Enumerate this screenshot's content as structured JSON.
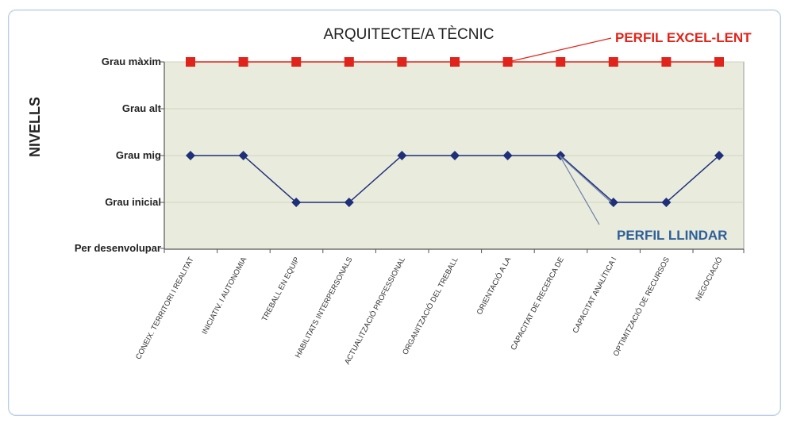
{
  "chart_data": {
    "type": "line",
    "title": "ARQUITECTE/A  TÈCNIC",
    "ylabel": "NIVELLS",
    "xlabel": "",
    "y_levels": [
      "Per desenvolupar",
      "Grau inicial",
      "Grau mig",
      "Grau alt",
      "Grau màxim"
    ],
    "ylim": [
      0,
      4
    ],
    "grid": true,
    "categories": [
      "CONEIX. TERRITORI I REALITAT",
      "INICIATIV. I AUTONOMIA",
      "TREBALL EN EQUIP",
      "HABILITATS INTERPERSONALS",
      "ACTUALITZACIÓ PROFESSIONAL",
      "ORGANITZACIÓ DEL TREBALL",
      "ORIENTACIÓ A LA",
      "CAPACITAT DE RECERCA DE",
      "CAPACITAT ANALÍTICA I",
      "OPTIMITZACIÓ DE RECURSOS",
      "NEGOCIACIÓ"
    ],
    "series": [
      {
        "name": "PERFIL EXCEL-LENT",
        "color": "#e0241b",
        "marker": "square",
        "values": [
          4,
          4,
          4,
          4,
          4,
          4,
          4,
          4,
          4,
          4,
          4
        ]
      },
      {
        "name": "PERFIL LLINDAR",
        "color": "#1f2f7a",
        "marker": "diamond",
        "values": [
          2,
          2,
          1,
          1,
          2,
          2,
          2,
          2,
          1,
          1,
          2
        ]
      }
    ],
    "plot_background": "#e9ecdc"
  }
}
